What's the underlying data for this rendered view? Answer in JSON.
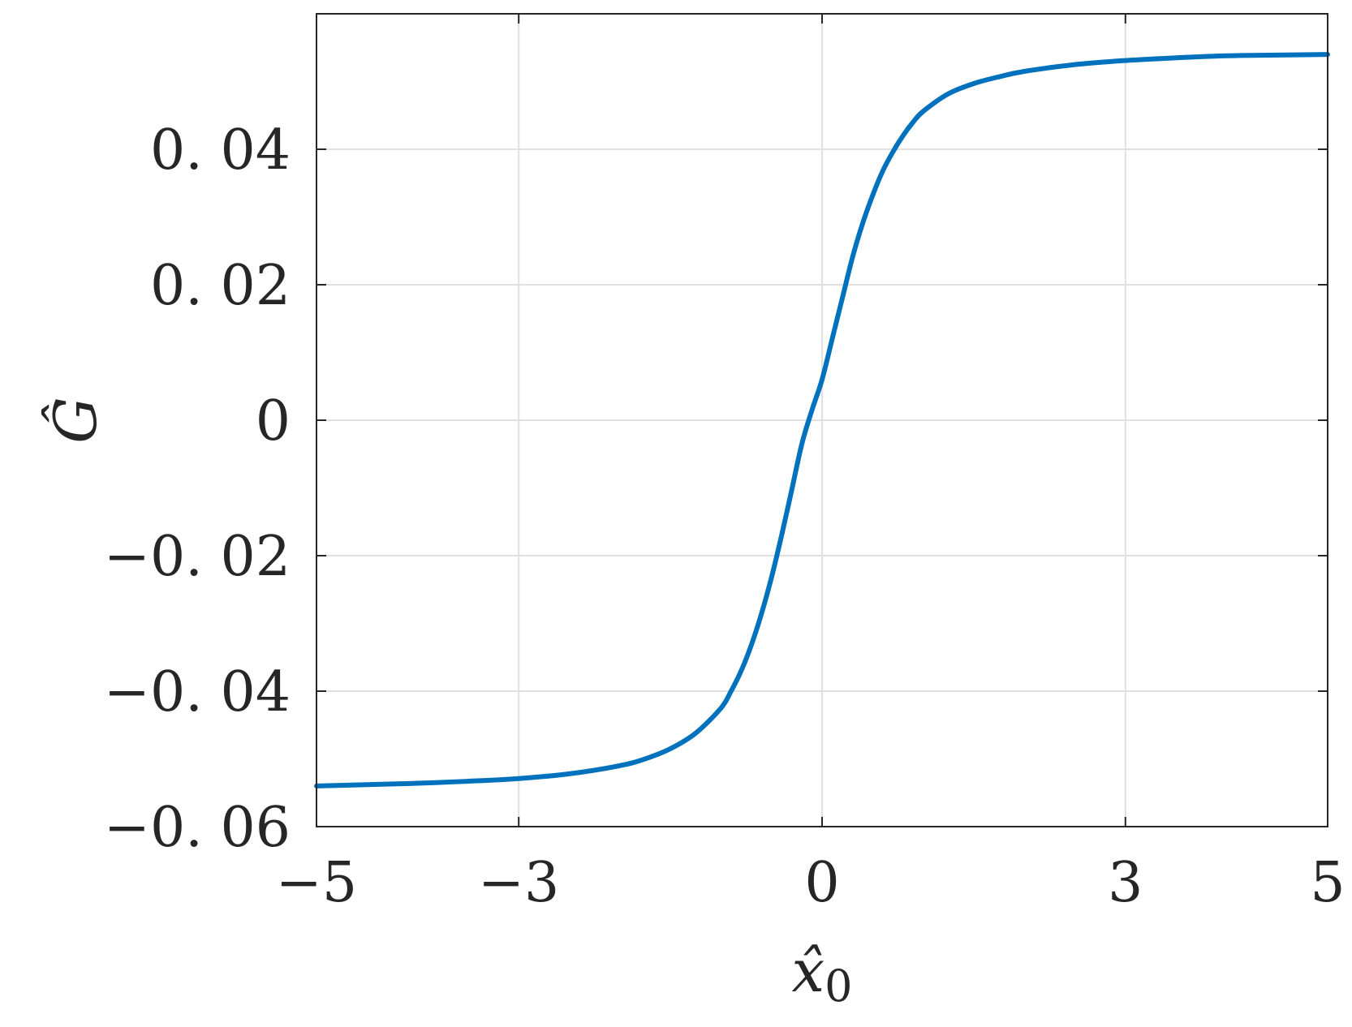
{
  "chart_data": {
    "type": "line",
    "title": "",
    "xlabel": "x̂",
    "xlabel_subscript": "0",
    "ylabel": "Ĝ",
    "xlim": [
      -5,
      5
    ],
    "ylim": [
      -0.06,
      0.06
    ],
    "xticks": [
      -5,
      -3,
      0,
      3,
      5
    ],
    "xtick_labels": [
      "−5",
      "−3",
      "0",
      "3",
      "5"
    ],
    "yticks": [
      -0.06,
      -0.04,
      -0.02,
      0,
      0.02,
      0.04
    ],
    "ytick_labels": [
      "−0. 06",
      "−0. 04",
      "−0. 02",
      "0",
      "0. 02",
      "0. 04"
    ],
    "grid": true,
    "series": [
      {
        "color": "#0072BD",
        "x": [
          -5,
          -4.5,
          -4,
          -3.5,
          -3,
          -2.5,
          -2,
          -1.75,
          -1.5,
          -1.25,
          -1,
          -0.9,
          -0.8,
          -0.7,
          -0.6,
          -0.5,
          -0.4,
          -0.3,
          -0.2,
          -0.1,
          0,
          0.1,
          0.2,
          0.3,
          0.4,
          0.5,
          0.6,
          0.7,
          0.8,
          0.9,
          1,
          1.25,
          1.5,
          1.75,
          2,
          2.5,
          3,
          3.5,
          4,
          4.5,
          5
        ],
        "y": [
          -0.054,
          -0.0538,
          -0.0536,
          -0.0533,
          -0.0529,
          -0.0522,
          -0.051,
          -0.05,
          -0.0485,
          -0.0462,
          -0.0425,
          -0.04,
          -0.037,
          -0.0332,
          -0.0286,
          -0.0232,
          -0.017,
          -0.0103,
          -0.0035,
          0.0015,
          0.006,
          0.012,
          0.018,
          0.024,
          0.029,
          0.0332,
          0.0368,
          0.0396,
          0.042,
          0.044,
          0.0456,
          0.0482,
          0.0497,
          0.0507,
          0.0515,
          0.0525,
          0.0531,
          0.0535,
          0.0538,
          0.0539,
          0.054
        ]
      }
    ]
  }
}
